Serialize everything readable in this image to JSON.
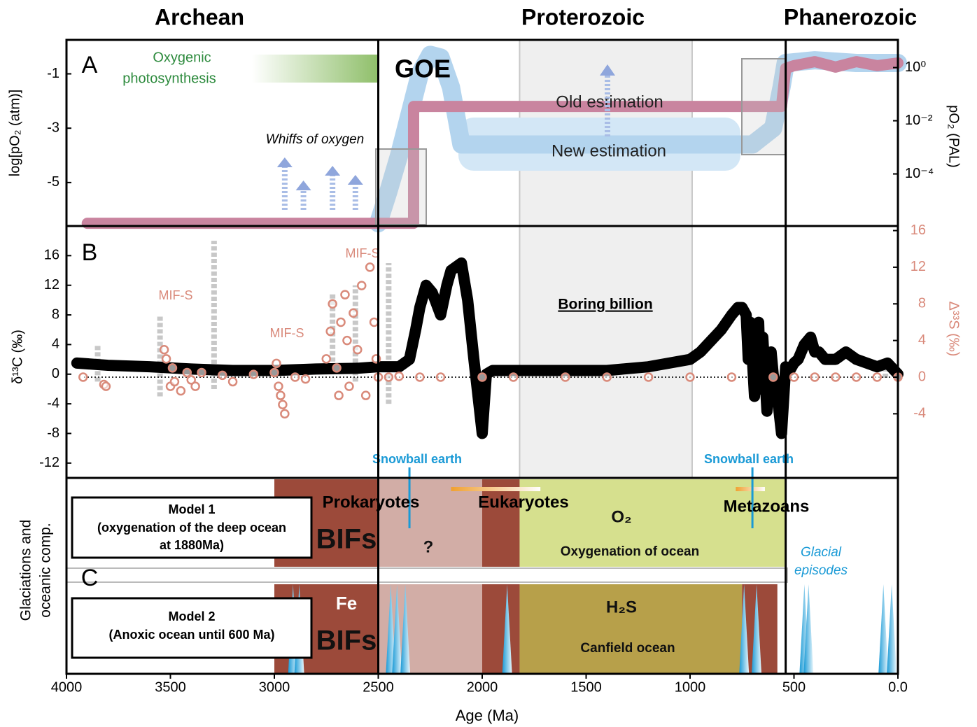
{
  "eras": {
    "labels": [
      "Archean",
      "Proterozoic",
      "Phanerozoic"
    ],
    "boundaries": [
      2500,
      540
    ]
  },
  "chart_data": [
    {
      "type": "line",
      "panel_label": "A",
      "ylabel": "log[pO₂ (atm)]",
      "y2label": "pO₂ (PAL)",
      "xlim": [
        4000,
        0
      ],
      "ylim": [
        -6.6,
        0.25
      ],
      "yticks": [
        -1,
        -3,
        -5
      ],
      "y2lim": [
        1.1e-06,
        11
      ],
      "y2log": true,
      "y2ticks": [
        {
          "value": 1,
          "label": "10⁰"
        },
        {
          "value": 0.01,
          "label": "10⁻²"
        },
        {
          "value": 0.0001,
          "label": "10⁻⁴"
        }
      ],
      "series": [
        {
          "name": "New estimation",
          "color": "#b3d4ee",
          "x": [
            2500,
            2450,
            2400,
            2350,
            2300,
            2250,
            2200,
            2150,
            2100,
            2000,
            1500,
            1000,
            700,
            600,
            560,
            540,
            400,
            200,
            0
          ],
          "values": [
            -6.5,
            -5.3,
            -4.0,
            -2.5,
            -1.0,
            -0.3,
            -0.4,
            -1.5,
            -3.6,
            -3.6,
            -3.6,
            -3.6,
            -3.6,
            -3.0,
            -1.5,
            -0.6,
            -0.5,
            -0.6,
            -0.6
          ]
        },
        {
          "name": "Old estimation",
          "color": "#c9849f",
          "x": [
            3900,
            2500,
            2330,
            2330,
            2150,
            560,
            540,
            500,
            400,
            300,
            200,
            100,
            0
          ],
          "values": [
            -6.5,
            -6.5,
            -6.5,
            -2.2,
            -2.2,
            -2.2,
            -0.8,
            -0.7,
            -0.55,
            -0.75,
            -0.55,
            -0.7,
            -0.6
          ]
        }
      ],
      "goe": "GOE",
      "photosynthesis": [
        "Oxygenic",
        "photosynthesis"
      ],
      "whiffs": {
        "label": "Whiffs of oxygen",
        "x": [
          2950,
          2860,
          2720,
          2610
        ]
      }
    },
    {
      "type": "line",
      "panel_label": "B",
      "ylabel": "δ¹³C (‰)",
      "y2label": "Δ³³S (‰)",
      "xlim": [
        4000,
        0
      ],
      "ylim": [
        -14,
        20
      ],
      "yticks": [
        -12,
        -8,
        -4,
        0,
        4,
        8,
        12,
        16
      ],
      "y2lim": [
        -11,
        16.5
      ],
      "y2ticks": [
        -4,
        0,
        4,
        8,
        12,
        16
      ],
      "series": [
        {
          "color": "#000000",
          "x": [
            3950,
            3800,
            3600,
            3400,
            3200,
            3000,
            2800,
            2600,
            2500,
            2400,
            2350,
            2320,
            2300,
            2270,
            2240,
            2200,
            2170,
            2150,
            2100,
            2070,
            2040,
            2020,
            2000,
            1980,
            1950,
            1900,
            1800,
            1600,
            1400,
            1200,
            1100,
            1000,
            950,
            900,
            850,
            800,
            770,
            750,
            730,
            720,
            710,
            690,
            670,
            660,
            650,
            630,
            610,
            600,
            580,
            560,
            540,
            520,
            500,
            480,
            450,
            420,
            400,
            380,
            350,
            300,
            250,
            200,
            150,
            100,
            50,
            0
          ],
          "values": [
            1.5,
            1.2,
            1,
            0.7,
            0.5,
            0.5,
            0.7,
            0.8,
            1,
            1,
            2,
            6,
            9,
            12,
            11,
            8,
            12,
            14,
            15,
            10,
            2,
            -3,
            -8,
            0,
            0.5,
            0.5,
            0.5,
            0.5,
            0.5,
            1,
            1.5,
            2,
            3,
            4.5,
            6,
            8,
            9,
            9,
            8,
            2,
            7,
            -3,
            7,
            -2,
            5,
            -5,
            3,
            0,
            -3,
            -8,
            1,
            0.5,
            1.5,
            2,
            4,
            5,
            3,
            3,
            2,
            2,
            3,
            2,
            1.5,
            1,
            1.5,
            0
          ]
        },
        {
          "color": "#d98a7a",
          "axis": "y2",
          "marker": "circle",
          "x": [
            3920,
            3820,
            3810,
            3530,
            3520,
            3500,
            3490,
            3480,
            3450,
            3420,
            3400,
            3380,
            3350,
            3250,
            3200,
            3100,
            3000,
            2990,
            2980,
            2970,
            2960,
            2950,
            2900,
            2850,
            2750,
            2730,
            2720,
            2700,
            2690,
            2680,
            2660,
            2650,
            2640,
            2620,
            2600,
            2580,
            2560,
            2540,
            2520,
            2510,
            2500,
            2450,
            2400,
            2300,
            2200,
            2000,
            1850,
            1600,
            1400,
            1200,
            1000,
            800,
            600,
            500,
            400,
            300,
            200,
            100,
            0
          ],
          "values": [
            0,
            -0.8,
            -1,
            3,
            2,
            -1,
            1,
            -0.5,
            -1.5,
            0.5,
            -0.3,
            -1,
            0.5,
            0.2,
            -0.5,
            0.3,
            0.5,
            1.5,
            -1,
            -2,
            -3,
            -4,
            0,
            -0.2,
            2,
            5,
            8,
            1,
            -2,
            6,
            9,
            4,
            -1,
            7,
            3,
            10,
            -2,
            12,
            6,
            2,
            0,
            0,
            0.1,
            0,
            0,
            0,
            0,
            0,
            0,
            0,
            0,
            0,
            0,
            0,
            0,
            0,
            0,
            0,
            0
          ]
        }
      ],
      "ranges": {
        "color": "#c8c8c8",
        "x": [
          3850,
          3550,
          3290,
          2720,
          2610,
          2450,
          60
        ],
        "low": [
          -1,
          -3,
          -2,
          0,
          -1,
          -4,
          -0.5
        ],
        "high": [
          4,
          8,
          18,
          11,
          12,
          15,
          1.5
        ]
      },
      "mif_s": [
        "MIF-S",
        "MIF-S",
        "MIF-S"
      ],
      "boring_billion": "Boring billion",
      "shaded": [
        1820,
        990
      ]
    },
    {
      "type": "timeline",
      "panel_label": "C",
      "ylabel": [
        "Glaciations and",
        "oceanic comp."
      ],
      "xlabel": "Age (Ma)",
      "xlim": [
        4000,
        0
      ],
      "xticks": [
        4000,
        3500,
        3000,
        2500,
        2000,
        1500,
        1000,
        500,
        {
          "value": 0,
          "label": "0.0"
        }
      ],
      "model1": {
        "label_lines": [
          "Model 1",
          "(oxygenation of the deep ocean",
          "at 1880Ma)"
        ],
        "zones": [
          {
            "start": 3000,
            "end": 1820,
            "color": "#9c4a3a"
          },
          {
            "start": 1820,
            "end": 540,
            "color": "#d6e08e"
          }
        ]
      },
      "model2": {
        "label_lines": [
          "Model 2",
          "(Anoxic ocean until 600 Ma)"
        ],
        "zones": [
          {
            "start": 3000,
            "end": 1820,
            "color": "#9c4a3a"
          },
          {
            "start": 1820,
            "end": 750,
            "color": "#b7a04a"
          },
          {
            "start": 750,
            "end": 580,
            "color": "#9c4a3a"
          }
        ]
      },
      "uncertain": [
        2500,
        2000
      ],
      "life": [
        "Prokaryotes",
        "Eukaryotes",
        "Metazoans"
      ],
      "eukaryote_bar": [
        2150,
        1720
      ],
      "metazoan_bar": [
        780,
        640
      ],
      "texts1": [
        "BIFs",
        "?",
        "O₂",
        "Oxygenation of ocean"
      ],
      "texts2": [
        "Fe",
        "BIFs",
        "H₂S",
        "Canfield ocean"
      ],
      "glacial_episodes": [
        "Glacial",
        "episodes"
      ],
      "glaciations_x": [
        2910,
        2880,
        2440,
        2410,
        2370,
        1880,
        740,
        680,
        450,
        430,
        70,
        30
      ],
      "snowball_earth": {
        "label": "Snowball earth",
        "x": [
          2350,
          700
        ]
      }
    }
  ]
}
